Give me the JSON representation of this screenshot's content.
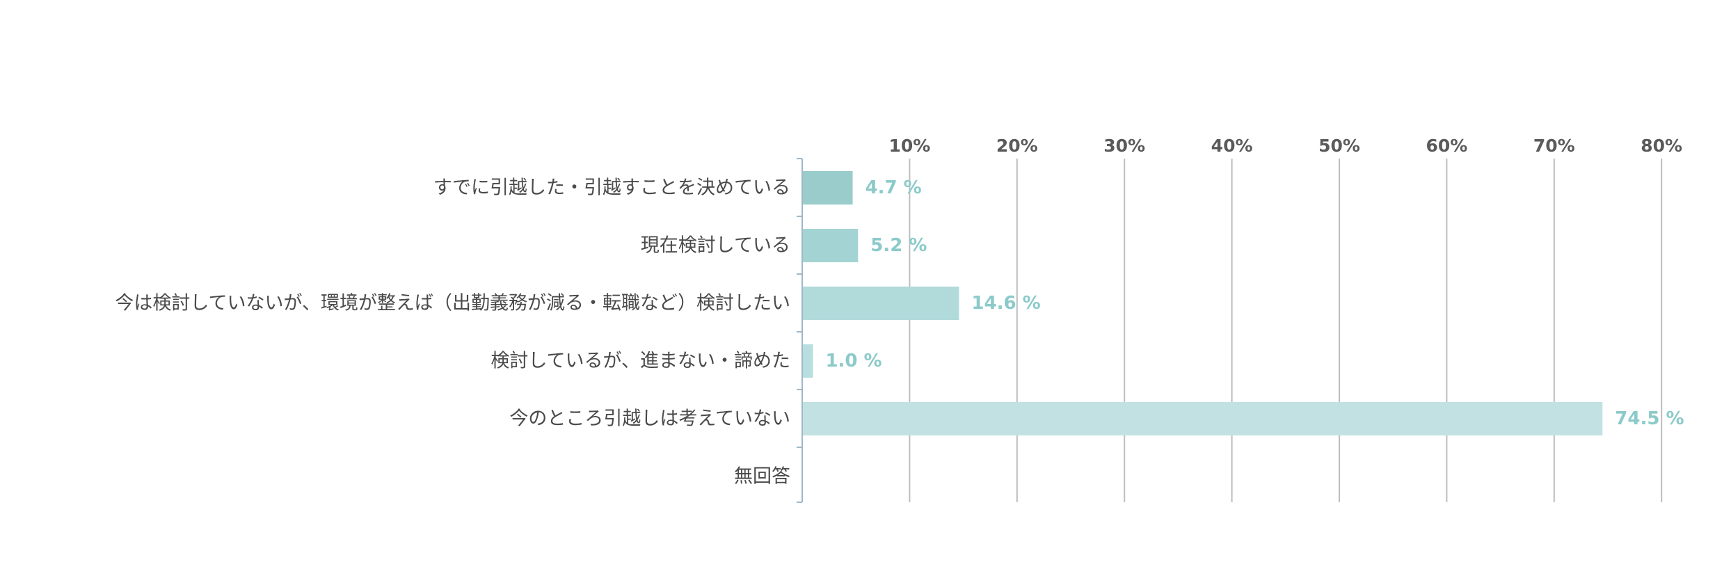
{
  "chart_data": {
    "type": "bar",
    "orientation": "horizontal",
    "categories": [
      "すでに引越した・引越すことを決めている",
      "現在検討している",
      "今は検討していないが、環境が整えば（出勤義務が減る・転職など）検討したい",
      "検討しているが、進まない・諦めた",
      "今のところ引越しは考えていない",
      "無回答"
    ],
    "values": [
      4.7,
      5.2,
      14.6,
      1.0,
      74.5,
      null
    ],
    "value_labels": [
      "4.7 %",
      "5.2 %",
      "14.6 %",
      "1.0 %",
      "74.5 %",
      ""
    ],
    "bar_colors": [
      "#99cccb",
      "#a3d3d3",
      "#b1dadb",
      "#b8dedf",
      "#c2e1e2",
      "#c2e1e2"
    ],
    "value_label_color": "#8ccaca",
    "xlim": [
      0,
      80
    ],
    "xticks": [
      10,
      20,
      30,
      40,
      50,
      60,
      70,
      80
    ],
    "xtick_labels": [
      "10%",
      "20%",
      "30%",
      "40%",
      "50%",
      "60%",
      "70%",
      "80%"
    ],
    "x_axis_position": "top",
    "grid": true
  }
}
